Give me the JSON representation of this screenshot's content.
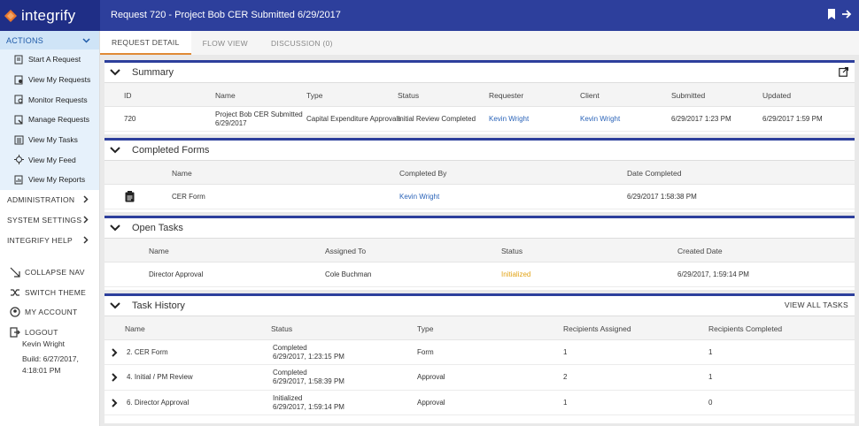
{
  "app": {
    "brand": "integrify",
    "page_title": "Request 720 - Project Bob CER Submitted 6/29/2017"
  },
  "sidebar": {
    "actions_label": "ACTIONS",
    "items": [
      {
        "label": "Start A Request",
        "icon": "start-request-icon"
      },
      {
        "label": "View My Requests",
        "icon": "my-requests-icon"
      },
      {
        "label": "Monitor Requests",
        "icon": "monitor-requests-icon"
      },
      {
        "label": "Manage Requests",
        "icon": "manage-requests-icon"
      },
      {
        "label": "View My Tasks",
        "icon": "my-tasks-icon"
      },
      {
        "label": "View My Feed",
        "icon": "feed-icon"
      },
      {
        "label": "View My Reports",
        "icon": "reports-icon"
      }
    ],
    "sections": [
      "ADMINISTRATION",
      "SYSTEM SETTINGS",
      "INTEGRIFY HELP"
    ],
    "utilities": [
      "COLLAPSE NAV",
      "SWITCH THEME",
      "MY ACCOUNT",
      "LOGOUT"
    ],
    "user": "Kevin Wright",
    "build_line1": "Build: 6/27/2017,",
    "build_line2": "4:18:01 PM"
  },
  "tabs": [
    "REQUEST DETAIL",
    "FLOW VIEW",
    "DISCUSSION (0)"
  ],
  "summary": {
    "title": "Summary",
    "headers": [
      "ID",
      "Name",
      "Type",
      "Status",
      "Requester",
      "Client",
      "Submitted",
      "Updated"
    ],
    "row": {
      "id": "720",
      "name1": "Project Bob CER Submitted",
      "name2": "6/29/2017",
      "type": "Capital Expenditure Approvals",
      "status": "Initial Review Completed",
      "requester": "Kevin Wright",
      "client": "Kevin Wright",
      "submitted": "6/29/2017 1:23 PM",
      "updated": "6/29/2017 1:59 PM"
    }
  },
  "completed_forms": {
    "title": "Completed Forms",
    "headers": [
      "Name",
      "Completed By",
      "Date Completed"
    ],
    "row": {
      "name": "CER Form",
      "completed_by": "Kevin Wright",
      "date": "6/29/2017 1:58:38 PM"
    }
  },
  "open_tasks": {
    "title": "Open Tasks",
    "headers": [
      "Name",
      "Assigned To",
      "Status",
      "Created Date"
    ],
    "row": {
      "name": "Director Approval",
      "assigned_to": "Cole Buchman",
      "status": "Initialized",
      "created": "6/29/2017, 1:59:14 PM"
    }
  },
  "task_history": {
    "title": "Task History",
    "view_all": "VIEW ALL TASKS",
    "headers": [
      "Name",
      "Status",
      "Type",
      "Recipients Assigned",
      "Recipients Completed"
    ],
    "rows": [
      {
        "name": "2. CER Form",
        "status1": "Completed",
        "status2": "6/29/2017, 1:23:15 PM",
        "type": "Form",
        "assigned": "1",
        "completed": "1"
      },
      {
        "name": "4. Initial / PM Review",
        "status1": "Completed",
        "status2": "6/29/2017, 1:58:39 PM",
        "type": "Approval",
        "assigned": "2",
        "completed": "1"
      },
      {
        "name": "6. Director Approval",
        "status1": "Initialized",
        "status2": "6/29/2017, 1:59:14 PM",
        "type": "Approval",
        "assigned": "1",
        "completed": "0"
      }
    ]
  },
  "colors": {
    "brand_blue": "#2d3f9c",
    "link": "#2a63b8",
    "warning": "#e2a316",
    "tab_accent": "#e08a36"
  }
}
